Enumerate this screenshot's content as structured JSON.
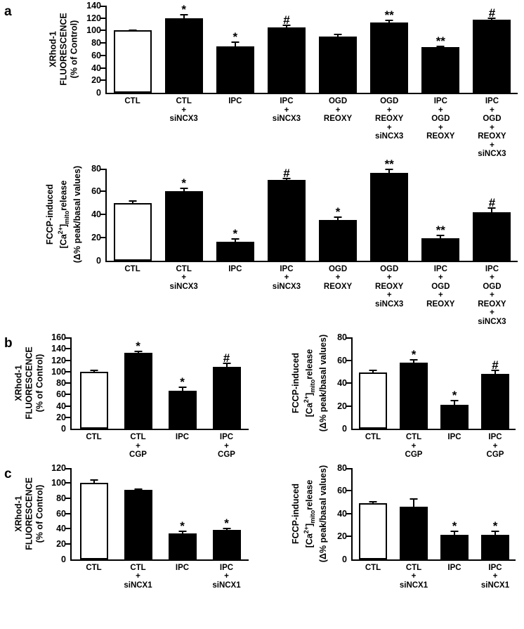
{
  "figure": {
    "panel_labels": [
      "a",
      "b",
      "c"
    ]
  },
  "chart_data": [
    {
      "id": "a-top",
      "panel": "a",
      "type": "bar",
      "ylabel_lines": [
        "XRhod-1",
        "FLUORESCENCE",
        "(% of Control)"
      ],
      "ylim": [
        0,
        140
      ],
      "yticks": [
        0,
        20,
        40,
        60,
        80,
        100,
        120,
        140
      ],
      "grid": false,
      "categories_lines": [
        [
          "CTL"
        ],
        [
          "CTL",
          "+",
          "siNCX3"
        ],
        [
          "IPC"
        ],
        [
          "IPC",
          "+",
          "siNCX3"
        ],
        [
          "OGD",
          "+",
          "REOXY"
        ],
        [
          "OGD",
          "+",
          "REOXY",
          "+",
          "siNCX3"
        ],
        [
          "IPC",
          "+",
          "OGD",
          "+",
          "REOXY"
        ],
        [
          "IPC",
          "+",
          "OGD",
          "+",
          "REOXY",
          "+",
          "siNCX3"
        ]
      ],
      "values": [
        100,
        120,
        75,
        105,
        90,
        113,
        73,
        118
      ],
      "errors": [
        2,
        6,
        7,
        5,
        5,
        4,
        3,
        3
      ],
      "sig": [
        "",
        "*",
        "*",
        "#",
        "",
        "**",
        "**",
        "#"
      ],
      "bar_fill": [
        "#ffffff",
        "#000000",
        "#000000",
        "#000000",
        "#000000",
        "#000000",
        "#000000",
        "#000000"
      ]
    },
    {
      "id": "a-bottom",
      "panel": "a",
      "type": "bar",
      "ylabel_lines": [
        "FCCP-induced",
        "[Ca^2+^]_mito_release",
        "(Δ% peak/basal values)"
      ],
      "ylim": [
        0,
        80
      ],
      "yticks": [
        0,
        20,
        40,
        60,
        80
      ],
      "grid": false,
      "categories_lines": [
        [
          "CTL"
        ],
        [
          "CTL",
          "+",
          "siNCX3"
        ],
        [
          "IPC"
        ],
        [
          "IPC",
          "+",
          "siNCX3"
        ],
        [
          "OGD",
          "+",
          "REOXY"
        ],
        [
          "OGD",
          "+",
          "REOXY",
          "+",
          "siNCX3"
        ],
        [
          "IPC",
          "+",
          "OGD",
          "+",
          "REOXY"
        ],
        [
          "IPC",
          "+",
          "OGD",
          "+",
          "REOXY",
          "+",
          "siNCX3"
        ]
      ],
      "values": [
        50,
        60,
        16,
        70,
        35,
        76,
        19,
        42
      ],
      "errors": [
        2,
        3,
        3,
        2,
        3,
        4,
        3,
        4
      ],
      "sig": [
        "",
        "*",
        "*",
        "#",
        "*",
        "**",
        "**",
        "#"
      ],
      "bar_fill": [
        "#ffffff",
        "#000000",
        "#000000",
        "#000000",
        "#000000",
        "#000000",
        "#000000",
        "#000000"
      ]
    },
    {
      "id": "b-left",
      "panel": "b",
      "type": "bar",
      "ylabel_lines": [
        "XRhod-1",
        "FLUORESCENCE",
        "(% of Control)"
      ],
      "ylim": [
        0,
        160
      ],
      "yticks": [
        0,
        20,
        40,
        60,
        80,
        100,
        120,
        140,
        160
      ],
      "grid": false,
      "categories_lines": [
        [
          "CTL"
        ],
        [
          "CTL",
          "+",
          "CGP"
        ],
        [
          "IPC"
        ],
        [
          "IPC",
          "+",
          "CGP"
        ]
      ],
      "values": [
        100,
        133,
        67,
        108
      ],
      "errors": [
        3,
        4,
        7,
        8
      ],
      "sig": [
        "",
        "*",
        "*",
        "#"
      ],
      "bar_fill": [
        "#ffffff",
        "#000000",
        "#000000",
        "#000000"
      ]
    },
    {
      "id": "b-right",
      "panel": "b",
      "type": "bar",
      "ylabel_lines": [
        "FCCP-induced",
        "[Ca^2+^]_mito_release",
        "(Δ% peak/basal values)"
      ],
      "ylim": [
        0,
        80
      ],
      "yticks": [
        0,
        20,
        40,
        60,
        80
      ],
      "grid": false,
      "categories_lines": [
        [
          "CTL"
        ],
        [
          "CTL",
          "+",
          "CGP"
        ],
        [
          "IPC"
        ],
        [
          "IPC",
          "+",
          "CGP"
        ]
      ],
      "values": [
        49,
        58,
        21,
        48
      ],
      "errors": [
        3,
        3,
        4,
        4
      ],
      "sig": [
        "",
        "*",
        "*",
        "#"
      ],
      "bar_fill": [
        "#ffffff",
        "#000000",
        "#000000",
        "#000000"
      ]
    },
    {
      "id": "c-left",
      "panel": "c",
      "type": "bar",
      "ylabel_lines": [
        "XRhod-1",
        "FLUORESCENCE",
        "(% of Control)"
      ],
      "ylim": [
        0,
        120
      ],
      "yticks": [
        0,
        20,
        40,
        60,
        80,
        100,
        120
      ],
      "grid": false,
      "categories_lines": [
        [
          "CTL"
        ],
        [
          "CTL",
          "+",
          "siNCX1"
        ],
        [
          "IPC"
        ],
        [
          "IPC",
          "+",
          "siNCX1"
        ]
      ],
      "values": [
        100,
        91,
        34,
        38
      ],
      "errors": [
        5,
        2,
        3,
        3
      ],
      "sig": [
        "",
        "",
        "*",
        "*"
      ],
      "bar_fill": [
        "#ffffff",
        "#000000",
        "#000000",
        "#000000"
      ]
    },
    {
      "id": "c-right",
      "panel": "c",
      "type": "bar",
      "ylabel_lines": [
        "FCCP-induced",
        "[Ca^2+^]_mito_release",
        "(Δ% peak/basal values)"
      ],
      "ylim": [
        0,
        80
      ],
      "yticks": [
        0,
        20,
        40,
        60,
        80
      ],
      "grid": false,
      "categories_lines": [
        [
          "CTL"
        ],
        [
          "CTL",
          "+",
          "siNCX1"
        ],
        [
          "IPC"
        ],
        [
          "IPC",
          "+",
          "siNCX1"
        ]
      ],
      "values": [
        49,
        46,
        21,
        21
      ],
      "errors": [
        2,
        7,
        4,
        4
      ],
      "sig": [
        "",
        "",
        "*",
        "*"
      ],
      "bar_fill": [
        "#ffffff",
        "#000000",
        "#000000",
        "#000000"
      ]
    }
  ]
}
